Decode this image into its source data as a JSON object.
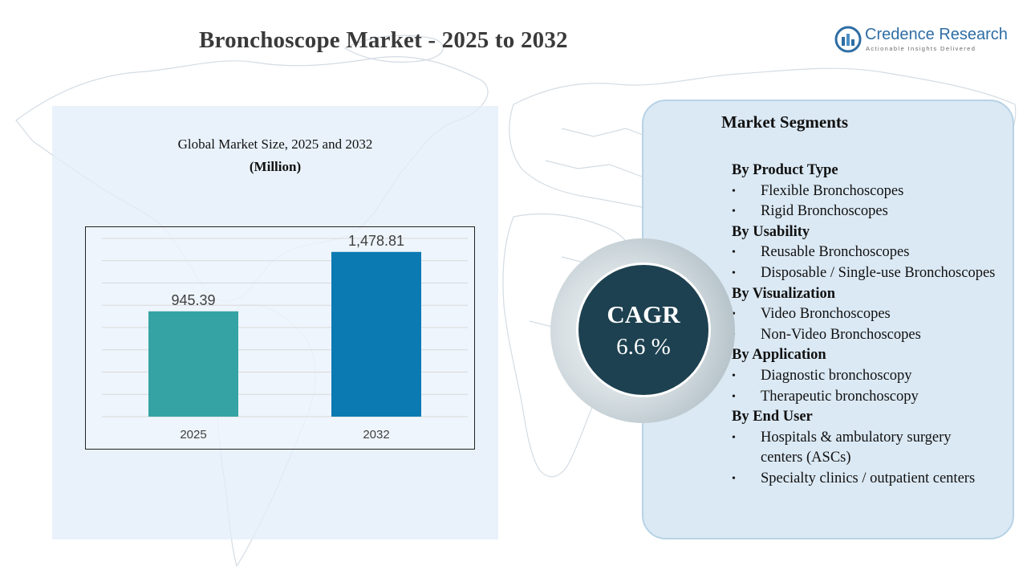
{
  "title": "Bronchoscope Market - 2025 to 2032",
  "logo": {
    "name": "Credence Research",
    "tagline": "Actionable Insights Delivered",
    "icon": "credence-logo-icon"
  },
  "chart_panel": {
    "subtitle": "Global Market Size, 2025 and 2032",
    "unit": "(Million)"
  },
  "chart_data": {
    "type": "bar",
    "categories": [
      "2025",
      "2032"
    ],
    "values": [
      945.39,
      1478.81
    ],
    "value_labels": [
      "945.39",
      "1,478.81"
    ],
    "colors": [
      "#35a3a3",
      "#0b7ab3"
    ],
    "title": "Global Market Size, 2025 and 2032",
    "ylabel": "(Million)",
    "xlabel": "",
    "ylim": [
      0,
      1600
    ],
    "grid": true
  },
  "cagr": {
    "label": "CAGR",
    "value": "6.6 %"
  },
  "segments": {
    "title": "Market Segments",
    "groups": [
      {
        "heading": "By Product Type",
        "items": [
          "Flexible Bronchoscopes",
          "Rigid Bronchoscopes"
        ]
      },
      {
        "heading": "By Usability",
        "items": [
          "Reusable Bronchoscopes",
          "Disposable / Single-use Bronchoscopes"
        ]
      },
      {
        "heading": "By Visualization",
        "items": [
          "Video Bronchoscopes",
          "Non-Video Bronchoscopes"
        ]
      },
      {
        "heading": "By Application",
        "items": [
          "Diagnostic bronchoscopy",
          "Therapeutic bronchoscopy"
        ]
      },
      {
        "heading": "By End User",
        "items": [
          "Hospitals & ambulatory surgery centers (ASCs)",
          "Specialty clinics / outpatient centers"
        ]
      }
    ]
  },
  "colors": {
    "panel_left": "#e2eefa",
    "panel_right": "#dbe9f4",
    "cagr_circle": "#1d4150",
    "logo_blue": "#2e6da4"
  }
}
